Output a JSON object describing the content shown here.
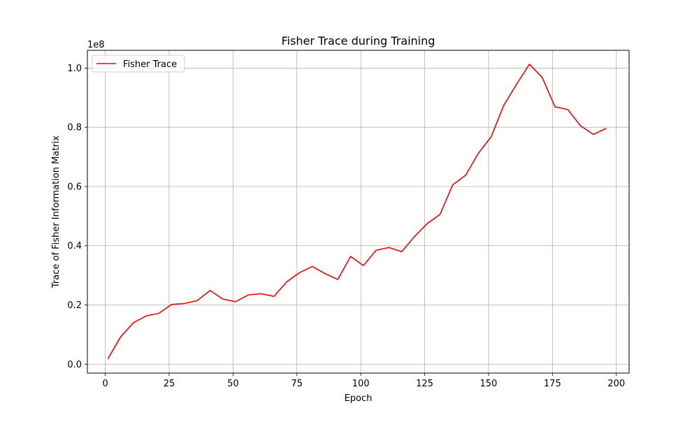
{
  "chart_data": {
    "type": "line",
    "title": "Fisher Trace during Training",
    "xlabel": "Epoch",
    "ylabel": "Trace of Fisher Information Matrix",
    "y_scale_label": "1e8",
    "xlim": [
      -7,
      205
    ],
    "ylim": [
      -0.03,
      1.06
    ],
    "x_ticks": [
      0,
      25,
      50,
      75,
      100,
      125,
      150,
      175,
      200
    ],
    "y_ticks": [
      0.0,
      0.2,
      0.4,
      0.6,
      0.8,
      1.0
    ],
    "grid": true,
    "legend_position": "top-left",
    "series": [
      {
        "name": "Fisher Trace",
        "color": "#ff0000",
        "x": [
          1,
          6,
          11,
          16,
          21,
          26,
          31,
          36,
          41,
          46,
          51,
          56,
          61,
          66,
          71,
          76,
          81,
          86,
          91,
          96,
          101,
          106,
          111,
          116,
          121,
          126,
          131,
          136,
          141,
          146,
          151,
          156,
          161,
          166,
          171,
          176,
          181,
          186,
          191,
          196
        ],
        "y": [
          0.018,
          0.092,
          0.14,
          0.163,
          0.172,
          0.202,
          0.205,
          0.215,
          0.249,
          0.22,
          0.211,
          0.234,
          0.238,
          0.229,
          0.278,
          0.309,
          0.33,
          0.306,
          0.286,
          0.364,
          0.333,
          0.385,
          0.394,
          0.38,
          0.431,
          0.475,
          0.506,
          0.606,
          0.638,
          0.712,
          0.768,
          0.875,
          0.946,
          1.013,
          0.968,
          0.869,
          0.86,
          0.805,
          0.776,
          0.796
        ]
      }
    ]
  }
}
